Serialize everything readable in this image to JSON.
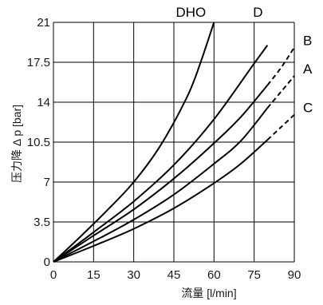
{
  "chart_data": {
    "type": "line",
    "xlabel": "流量 [l/min]",
    "ylabel": "压力降 Δ p [bar]",
    "xlim": [
      0,
      90
    ],
    "ylim": [
      0,
      21
    ],
    "x_ticks": [
      "0",
      "15",
      "30",
      "45",
      "60",
      "75",
      "90"
    ],
    "y_ticks": [
      "0",
      "3.5",
      "7",
      "10.5",
      "14",
      "17.5",
      "21"
    ],
    "grid": true,
    "series": [
      {
        "name": "DHO",
        "label_position": "top",
        "dashed_from_x": null,
        "x": [
          0,
          10,
          20,
          30,
          40,
          50,
          55,
          60
        ],
        "y": [
          0,
          2.2,
          4.5,
          7.0,
          10.2,
          14.5,
          17.5,
          21.0
        ]
      },
      {
        "name": "D",
        "label_position": "top",
        "dashed_from_x": null,
        "x": [
          0,
          15,
          30,
          45,
          60,
          75,
          80
        ],
        "y": [
          0,
          2.6,
          5.3,
          8.5,
          12.5,
          17.4,
          19.0
        ]
      },
      {
        "name": "B",
        "label_position": "right",
        "dashed_from_x": 80,
        "x": [
          0,
          15,
          30,
          45,
          60,
          70,
          80,
          85,
          90
        ],
        "y": [
          0,
          2.3,
          4.6,
          7.3,
          10.4,
          12.7,
          15.5,
          17.0,
          18.8
        ]
      },
      {
        "name": "A",
        "label_position": "right",
        "dashed_from_x": 80,
        "x": [
          0,
          15,
          30,
          45,
          60,
          70,
          80,
          85,
          90
        ],
        "y": [
          0,
          1.8,
          3.7,
          5.9,
          8.6,
          10.6,
          13.5,
          14.9,
          16.3
        ]
      },
      {
        "name": "C",
        "label_position": "right",
        "dashed_from_x": 80,
        "x": [
          0,
          15,
          30,
          45,
          60,
          70,
          80,
          85,
          90
        ],
        "y": [
          0,
          1.4,
          2.9,
          4.7,
          6.9,
          8.6,
          10.7,
          11.8,
          12.9
        ]
      }
    ]
  },
  "colors": {
    "line": "#000000",
    "grid": "#000000",
    "text": "#1a1a1a"
  }
}
